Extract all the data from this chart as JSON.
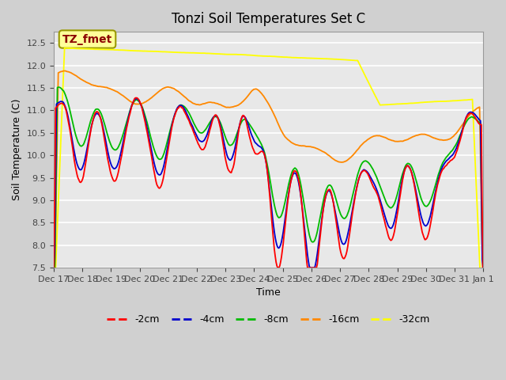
{
  "title": "Tonzi Soil Temperatures Set C",
  "xlabel": "Time",
  "ylabel": "Soil Temperature (C)",
  "ylim": [
    7.5,
    12.75
  ],
  "annotation_text": "TZ_fmet",
  "annotation_color": "#8B0000",
  "annotation_bg": "#FFFF99",
  "annotation_border": "#999900",
  "legend_labels": [
    "-2cm",
    "-4cm",
    "-8cm",
    "-16cm",
    "-32cm"
  ],
  "line_colors": [
    "#FF0000",
    "#0000CC",
    "#00BB00",
    "#FF8800",
    "#FFFF00"
  ],
  "x_tick_labels": [
    "Dec 17",
    "Dec 18",
    "Dec 19",
    "Dec 20",
    "Dec 21",
    "Dec 22",
    "Dec 23",
    "Dec 24",
    "Dec 25",
    "Dec 26",
    "Dec 27",
    "Dec 28",
    "Dec 29",
    "Dec 30",
    "Dec 31",
    "Jan 1"
  ],
  "n_points": 480
}
